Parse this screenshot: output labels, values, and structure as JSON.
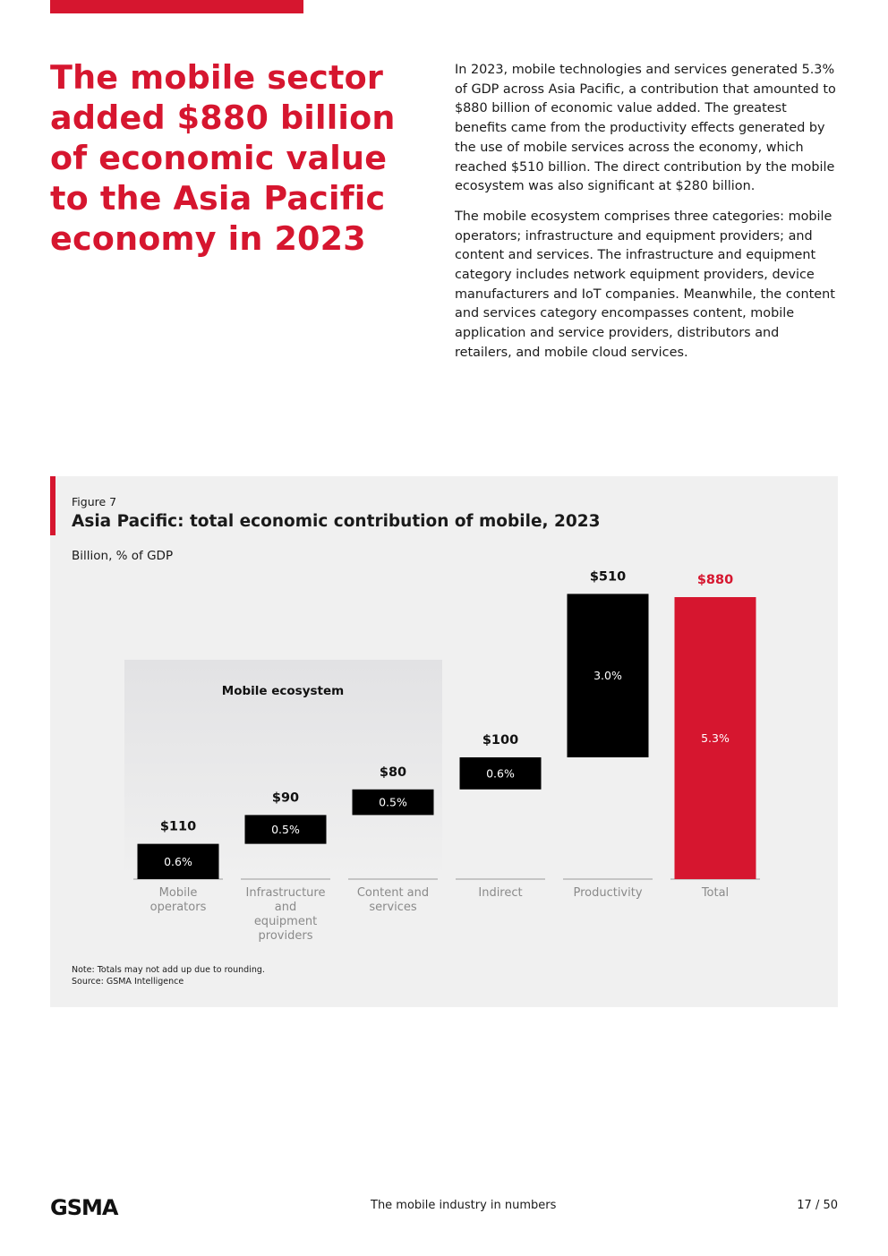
{
  "headline": "The mobile sector added $880 billion of economic value to the Asia Pacific economy in 2023",
  "body": {
    "p1": "In 2023, mobile technologies and services generated 5.3% of GDP across Asia Pacific, a contribution that amounted to $880 billion of economic value added. The greatest benefits came from the productivity effects generated by the use of mobile services across the economy, which reached $510 billion. The direct contribution by the mobile ecosystem was also significant at $280 billion.",
    "p2": "The mobile ecosystem comprises three categories: mobile operators; infrastructure and equipment providers; and content and services. The infrastructure and equipment category includes network equipment providers, device manufacturers and IoT companies. Meanwhile, the content and services category encompasses content, mobile application and service providers, distributors and retailers, and mobile cloud services."
  },
  "figure": {
    "label": "Figure 7",
    "note": "Note: Totals may not add up due to rounding.",
    "source": "Source: GSMA Intelligence"
  },
  "chart_data": {
    "type": "bar",
    "subtype": "waterfall",
    "title": "Asia Pacific: total economic contribution of mobile, 2023",
    "ylabel": "Billion, % of GDP",
    "group_label": "Mobile ecosystem",
    "categories": [
      [
        "Mobile",
        "operators"
      ],
      [
        "Infrastructure",
        "and",
        "equipment",
        "providers"
      ],
      [
        "Content and",
        "services"
      ],
      [
        "Indirect"
      ],
      [
        "Productivity"
      ],
      [
        "Total"
      ]
    ],
    "values": [
      110,
      90,
      80,
      100,
      510,
      880
    ],
    "value_labels": [
      "$110",
      "$90",
      "$80",
      "$100",
      "$510",
      "$880"
    ],
    "gdp_share": [
      "0.6%",
      "0.5%",
      "0.5%",
      "0.6%",
      "3.0%",
      "5.3%"
    ],
    "colors": {
      "bar": "#000000",
      "total": "#d6162f",
      "accent": "#d6162f"
    }
  },
  "footer": {
    "logo": "GSMA",
    "title": "The mobile industry in numbers",
    "page": "17 / 50"
  }
}
